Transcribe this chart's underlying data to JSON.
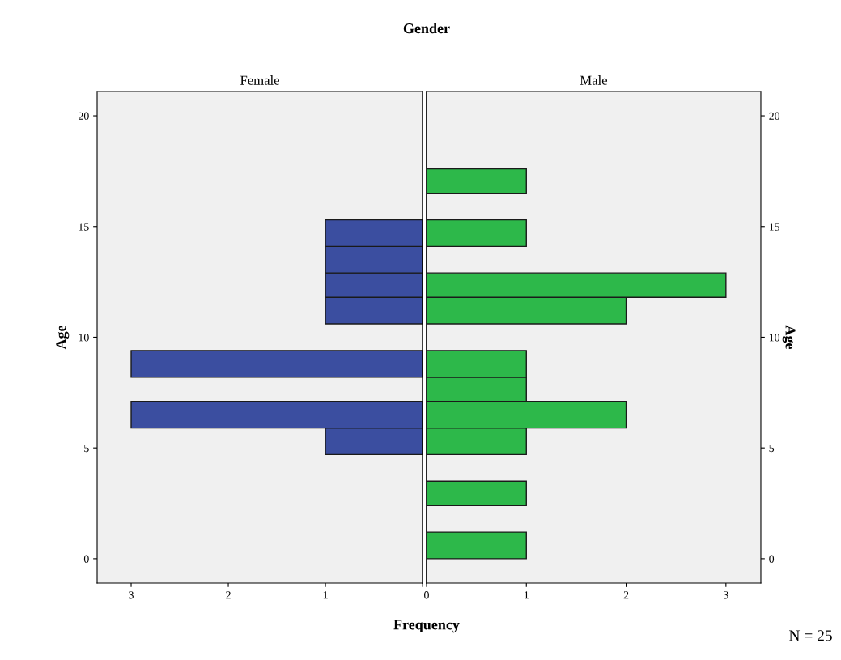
{
  "chart_data": [
    {
      "type": "histogram",
      "orientation": "horizontal",
      "title": "Female",
      "ylabel": "Age",
      "xlabel": "Frequency",
      "annotations": [
        "Gender"
      ],
      "color": "#3b4ea0",
      "bins": [
        4.7,
        5.9,
        7.1,
        8.2,
        9.4,
        10.6,
        11.8,
        12.9,
        14.1,
        15.3
      ],
      "values": [
        1,
        3,
        0,
        3,
        0,
        1,
        1,
        1,
        1
      ],
      "xlim": [
        3.35,
        0
      ],
      "xticks": [
        3,
        2,
        1,
        {
          "value": 0,
          "label": null
        }
      ],
      "ylim": [
        -1.1,
        21.1
      ],
      "yticks": [
        0,
        5,
        10,
        15,
        20
      ],
      "grid": false,
      "legend": false
    },
    {
      "type": "histogram",
      "orientation": "horizontal",
      "title": "Male",
      "ylabel": "Age",
      "annotations": [
        "N = 25"
      ],
      "color": "#2db84a",
      "bins": [
        0,
        1.2,
        2.4,
        3.5,
        4.7,
        5.9,
        7.1,
        8.2,
        9.4,
        10.6,
        11.8,
        12.9,
        14.1,
        15.3,
        16.5,
        17.6
      ],
      "values": [
        1,
        0,
        1,
        0,
        1,
        2,
        1,
        1,
        0,
        2,
        3,
        0,
        1,
        0,
        1
      ],
      "xlim": [
        0,
        3.35
      ],
      "xticks": [
        0,
        1,
        2,
        3
      ],
      "ylim": [
        -1.1,
        21.1
      ],
      "yticks": [
        0,
        5,
        10,
        15,
        20
      ],
      "grid": false,
      "legend": false
    }
  ]
}
